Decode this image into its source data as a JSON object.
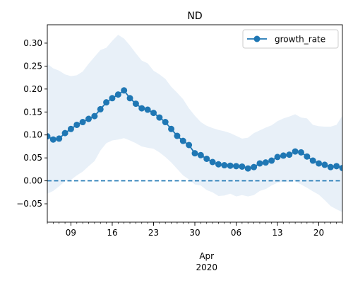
{
  "chart_data": {
    "type": "line",
    "title": "ND",
    "xlabel": "",
    "ylabel": "",
    "x_start": "2020-03-05",
    "x_end": "2020-04-24",
    "x_tick_labels": [
      {
        "date": "2020-03-09",
        "label": "09"
      },
      {
        "date": "2020-03-16",
        "label": "16"
      },
      {
        "date": "2020-03-23",
        "label": "23"
      },
      {
        "date": "2020-03-30",
        "label": "30"
      },
      {
        "date": "2020-04-06",
        "label": "06"
      },
      {
        "date": "2020-04-13",
        "label": "13"
      },
      {
        "date": "2020-04-20",
        "label": "20"
      }
    ],
    "x_group_label": [
      "Apr",
      "2020"
    ],
    "y_ticks": [
      -0.05,
      0.0,
      0.05,
      0.1,
      0.15,
      0.2,
      0.25,
      0.3
    ],
    "y_tick_labels": [
      "−0.05",
      "0.00",
      "0.05",
      "0.10",
      "0.15",
      "0.20",
      "0.25",
      "0.30"
    ],
    "ylim": [
      -0.09,
      0.34
    ],
    "legend": {
      "position": "upper-right",
      "label": "growth_rate"
    },
    "colors": {
      "series": "#1f77b4",
      "band": "#e8f0f8",
      "reference": "#1f77b4"
    },
    "reference_line": {
      "y": 0.0,
      "style": "dashed"
    },
    "series": [
      {
        "name": "growth_rate",
        "marker": "circle",
        "x": [
          "2020-03-05",
          "2020-03-06",
          "2020-03-07",
          "2020-03-08",
          "2020-03-09",
          "2020-03-10",
          "2020-03-11",
          "2020-03-12",
          "2020-03-13",
          "2020-03-14",
          "2020-03-15",
          "2020-03-16",
          "2020-03-17",
          "2020-03-18",
          "2020-03-19",
          "2020-03-20",
          "2020-03-21",
          "2020-03-22",
          "2020-03-23",
          "2020-03-24",
          "2020-03-25",
          "2020-03-26",
          "2020-03-27",
          "2020-03-28",
          "2020-03-29",
          "2020-03-30",
          "2020-03-31",
          "2020-04-01",
          "2020-04-02",
          "2020-04-03",
          "2020-04-04",
          "2020-04-05",
          "2020-04-06",
          "2020-04-07",
          "2020-04-08",
          "2020-04-09",
          "2020-04-10",
          "2020-04-11",
          "2020-04-12",
          "2020-04-13",
          "2020-04-14",
          "2020-04-15",
          "2020-04-16",
          "2020-04-17",
          "2020-04-18",
          "2020-04-19",
          "2020-04-20",
          "2020-04-21",
          "2020-04-22",
          "2020-04-23",
          "2020-04-24"
        ],
        "values": [
          0.097,
          0.09,
          0.092,
          0.104,
          0.113,
          0.122,
          0.128,
          0.135,
          0.141,
          0.156,
          0.171,
          0.18,
          0.188,
          0.197,
          0.18,
          0.168,
          0.158,
          0.155,
          0.148,
          0.138,
          0.128,
          0.113,
          0.098,
          0.087,
          0.078,
          0.06,
          0.056,
          0.048,
          0.041,
          0.036,
          0.034,
          0.033,
          0.032,
          0.031,
          0.027,
          0.03,
          0.038,
          0.04,
          0.044,
          0.052,
          0.055,
          0.057,
          0.064,
          0.062,
          0.053,
          0.044,
          0.038,
          0.035,
          0.03,
          0.032,
          0.028
        ],
        "upper": [
          0.255,
          0.245,
          0.24,
          0.232,
          0.228,
          0.23,
          0.238,
          0.255,
          0.27,
          0.285,
          0.29,
          0.305,
          0.318,
          0.31,
          0.295,
          0.278,
          0.262,
          0.256,
          0.24,
          0.232,
          0.222,
          0.205,
          0.192,
          0.178,
          0.158,
          0.142,
          0.128,
          0.12,
          0.115,
          0.111,
          0.108,
          0.104,
          0.098,
          0.092,
          0.094,
          0.104,
          0.11,
          0.116,
          0.121,
          0.13,
          0.136,
          0.14,
          0.145,
          0.138,
          0.136,
          0.122,
          0.119,
          0.118,
          0.118,
          0.122,
          0.142
        ],
        "lower": [
          -0.028,
          -0.022,
          -0.012,
          -0.001,
          0.002,
          0.012,
          0.02,
          0.032,
          0.043,
          0.066,
          0.082,
          0.088,
          0.09,
          0.093,
          0.088,
          0.082,
          0.075,
          0.072,
          0.07,
          0.062,
          0.052,
          0.04,
          0.026,
          0.012,
          0.003,
          -0.008,
          -0.01,
          -0.02,
          -0.025,
          -0.033,
          -0.032,
          -0.028,
          -0.034,
          -0.031,
          -0.034,
          -0.031,
          -0.022,
          -0.018,
          -0.01,
          -0.004,
          -0.002,
          -0.003,
          -0.001,
          -0.008,
          -0.015,
          -0.023,
          -0.03,
          -0.042,
          -0.055,
          -0.062,
          -0.068
        ]
      }
    ]
  }
}
